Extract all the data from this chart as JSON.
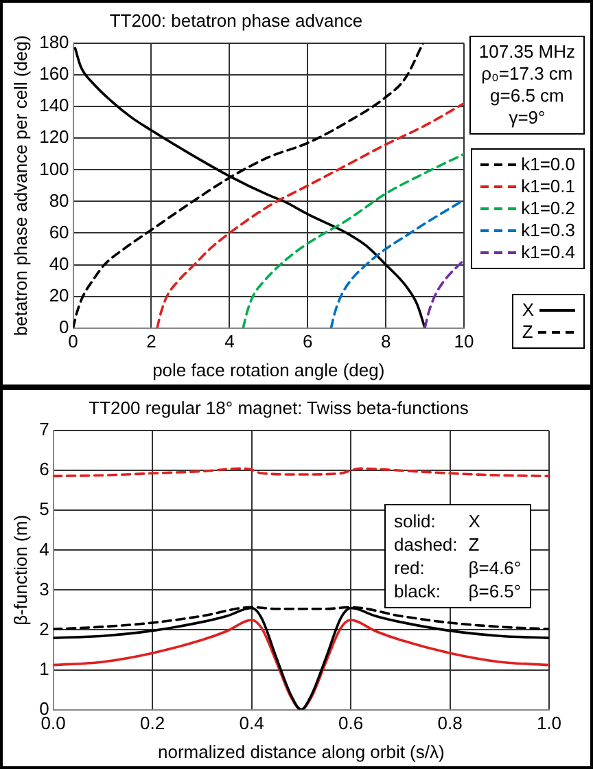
{
  "chart_data": [
    {
      "type": "line",
      "title": "TT200: betatron phase advance",
      "xlabel": "pole face rotation angle (deg)",
      "ylabel": "betatron phase advance per cell (deg)",
      "xlim": [
        0,
        10
      ],
      "xticks": [
        0,
        2,
        4,
        6,
        8,
        10
      ],
      "ylim": [
        0,
        180
      ],
      "yticks": [
        0,
        20,
        40,
        60,
        80,
        100,
        120,
        140,
        160,
        180
      ],
      "grid": true,
      "legend": "right",
      "marker": "none",
      "annotations": [
        "107.35 MHz",
        "ρ₀=17.3 cm",
        "g=6.5 cm",
        "γ=9°",
        "Z"
      ],
      "series": [
        {
          "name": "k1=0.0",
          "color": "#000000",
          "line_style": "dashed",
          "x": [
            0,
            0.1,
            0.25,
            0.5,
            0.8,
            1.3,
            2,
            3,
            4,
            5,
            6,
            7,
            8,
            8.5,
            8.95
          ],
          "values": [
            0,
            10,
            20,
            30,
            40,
            50,
            62,
            79,
            95,
            108,
            117,
            130,
            146,
            158,
            180
          ]
        },
        {
          "name": "k1=0.1",
          "color": "#e0201e",
          "line_style": "dashed",
          "x": [
            2.15,
            2.25,
            2.4,
            2.7,
            3.1,
            3.5,
            4,
            5,
            6,
            7,
            8,
            9,
            10
          ],
          "values": [
            0,
            10,
            20,
            30,
            40,
            50,
            60,
            77,
            90,
            103,
            116,
            128,
            142
          ]
        },
        {
          "name": "k1=0.2",
          "color": "#00b050",
          "line_style": "dashed",
          "x": [
            4.35,
            4.45,
            4.6,
            4.9,
            5.3,
            5.8,
            6.3,
            7,
            8,
            9,
            10
          ],
          "values": [
            0,
            10,
            20,
            30,
            40,
            50,
            58,
            68,
            85,
            98,
            110
          ]
        },
        {
          "name": "k1=0.3",
          "color": "#0070c0",
          "line_style": "dashed",
          "x": [
            6.6,
            6.7,
            6.85,
            7.1,
            7.5,
            8,
            8.5,
            9,
            10
          ],
          "values": [
            0,
            10,
            20,
            30,
            40,
            50,
            58,
            66,
            81
          ]
        },
        {
          "name": "k1=0.4",
          "color": "#7030a0",
          "line_style": "dashed",
          "x": [
            9,
            9.1,
            9.25,
            9.5,
            10
          ],
          "values": [
            0,
            10,
            20,
            30,
            43
          ]
        },
        {
          "name": "X",
          "color": "#000000",
          "line_style": "solid",
          "x": [
            0.05,
            0.2,
            0.5,
            1,
            1.5,
            2,
            3,
            4,
            5,
            5.4,
            6,
            7,
            7.5,
            8,
            8.5,
            8.8,
            9
          ],
          "values": [
            177,
            165,
            155,
            143,
            133,
            125,
            110,
            96,
            84,
            80,
            72,
            60,
            52,
            40,
            27,
            15,
            0
          ]
        }
      ]
    },
    {
      "type": "line",
      "title": "TT200 regular 18° magnet: Twiss beta-functions",
      "xlabel": "normalized distance along orbit (s/λ)",
      "ylabel": "β-function (m)",
      "xlim": [
        0,
        1
      ],
      "xticks": [
        {
          "value": 0,
          "label": "0.0"
        },
        {
          "value": 0.2,
          "label": "0.2"
        },
        {
          "value": 0.4,
          "label": "0.4"
        },
        {
          "value": 0.6,
          "label": "0.6"
        },
        {
          "value": 0.8,
          "label": "0.8"
        },
        {
          "value": 1,
          "label": "1.0"
        }
      ],
      "ylim": [
        0,
        7
      ],
      "yticks": [
        0,
        1,
        2,
        3,
        4,
        5,
        6,
        7
      ],
      "grid": true,
      "marker": "none",
      "annotations": [
        "solid: X",
        "dashed: Z",
        "red: β=4.6°",
        "black: β=6.5°"
      ],
      "series": [
        {
          "color": "#e0201e",
          "line_style": "dashed",
          "x": [
            0,
            0.1,
            0.2,
            0.3,
            0.38,
            0.4,
            0.42,
            0.5,
            0.58,
            0.6,
            0.62,
            0.7,
            0.8,
            0.9,
            1
          ],
          "values": [
            5.86,
            5.88,
            5.93,
            5.98,
            6.05,
            6.02,
            5.93,
            5.9,
            5.93,
            6.0,
            6.05,
            6.0,
            5.93,
            5.88,
            5.86
          ]
        },
        {
          "color": "#000000",
          "line_style": "dashed",
          "x": [
            0,
            0.1,
            0.2,
            0.3,
            0.4,
            0.45,
            0.5,
            0.55,
            0.6,
            0.7,
            0.8,
            0.9,
            1
          ],
          "values": [
            2.02,
            2.08,
            2.18,
            2.35,
            2.57,
            2.53,
            2.53,
            2.53,
            2.57,
            2.35,
            2.18,
            2.08,
            2.02
          ]
        },
        {
          "color": "#000000",
          "line_style": "solid",
          "x": [
            0,
            0.1,
            0.2,
            0.3,
            0.35,
            0.4,
            0.42,
            0.45,
            0.48,
            0.5,
            0.52,
            0.55,
            0.58,
            0.6,
            0.65,
            0.7,
            0.8,
            0.9,
            1
          ],
          "values": [
            1.8,
            1.85,
            1.98,
            2.2,
            2.35,
            2.55,
            2.3,
            1.3,
            0.35,
            0,
            0.35,
            1.3,
            2.3,
            2.55,
            2.35,
            2.2,
            1.98,
            1.85,
            1.8
          ]
        },
        {
          "color": "#e0201e",
          "line_style": "solid",
          "x": [
            0,
            0.1,
            0.2,
            0.3,
            0.35,
            0.4,
            0.42,
            0.45,
            0.48,
            0.5,
            0.52,
            0.55,
            0.58,
            0.6,
            0.65,
            0.7,
            0.8,
            0.9,
            1
          ],
          "values": [
            1.12,
            1.2,
            1.42,
            1.75,
            1.97,
            2.25,
            2.05,
            1.2,
            0.3,
            0,
            0.3,
            1.2,
            2.05,
            2.25,
            1.97,
            1.75,
            1.42,
            1.2,
            1.12
          ]
        }
      ]
    }
  ]
}
